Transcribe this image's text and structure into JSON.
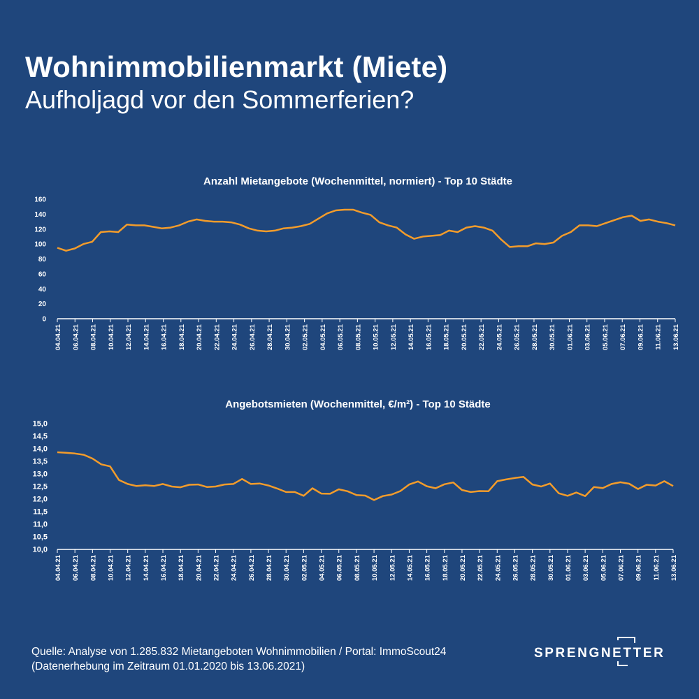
{
  "header": {
    "title": "Wohnimmobilienmarkt (Miete)",
    "subtitle": "Aufholjagd vor den Sommerferien?"
  },
  "footer": {
    "source_line1": "Quelle: Analyse von 1.285.832 Mietangeboten Wohnimmobilien / Portal: ImmoScout24",
    "source_line2": "(Datenerhebung im Zeitraum 01.01.2020 bis  13.06.2021)",
    "logo": "SPRENGNETTER"
  },
  "colors": {
    "background": "#1f467c",
    "line": "#f39c2b",
    "text": "#ffffff"
  },
  "chart_data": [
    {
      "type": "line",
      "title": "Anzahl Mietangebote (Wochenmittel, normiert) - Top 10 Städte",
      "ylim": [
        0,
        160
      ],
      "yticks": [
        "0",
        "20",
        "40",
        "60",
        "80",
        "100",
        "120",
        "140",
        "160"
      ],
      "grid": false,
      "x_tick_labels": [
        "04.04.21",
        "06.04.21",
        "08.04.21",
        "10.04.21",
        "12.04.21",
        "14.04.21",
        "16.04.21",
        "18.04.21",
        "20.04.21",
        "22.04.21",
        "24.04.21",
        "26.04.21",
        "28.04.21",
        "30.04.21",
        "02.05.21",
        "04.05.21",
        "06.05.21",
        "08.05.21",
        "10.05.21",
        "12.05.21",
        "14.05.21",
        "16.05.21",
        "18.05.21",
        "20.05.21",
        "22.05.21",
        "24.05.21",
        "26.05.21",
        "28.05.21",
        "30.05.21",
        "01.06.21",
        "03.06.21",
        "05.06.21",
        "07.06.21",
        "09.06.21",
        "11.06.21",
        "13.06.21"
      ],
      "values": [
        95,
        91,
        94,
        100,
        103,
        116,
        117,
        116,
        126,
        125,
        125,
        123,
        121,
        122,
        125,
        130,
        133,
        131,
        130,
        130,
        129,
        126,
        121,
        118,
        117,
        118,
        121,
        122,
        124,
        127,
        134,
        141,
        145,
        146,
        146,
        142,
        139,
        129,
        125,
        122,
        113,
        107,
        110,
        111,
        112,
        118,
        116,
        122,
        124,
        122,
        118,
        106,
        96,
        97,
        97,
        101,
        100,
        102,
        111,
        116,
        125,
        125,
        124,
        128,
        132,
        136,
        138,
        131,
        133,
        130,
        128,
        125
      ]
    },
    {
      "type": "line",
      "title": "Angebotsmieten (Wochenmittel, €/m²) - Top 10 Städte",
      "ylim": [
        10,
        15
      ],
      "yticks": [
        "10,0",
        "10,5",
        "11,0",
        "11,5",
        "12,0",
        "12,5",
        "13,0",
        "13,5",
        "14,0",
        "14,5",
        "15,0"
      ],
      "grid": false,
      "x_tick_labels": [
        "04.04.21",
        "06.04.21",
        "08.04.21",
        "10.04.21",
        "12.04.21",
        "14.04.21",
        "16.04.21",
        "18.04.21",
        "20.04.21",
        "22.04.21",
        "24.04.21",
        "26.04.21",
        "28.04.21",
        "30.04.21",
        "02.05.21",
        "04.05.21",
        "06.05.21",
        "08.05.21",
        "10.05.21",
        "12.05.21",
        "14.05.21",
        "16.05.21",
        "18.05.21",
        "20.05.21",
        "22.05.21",
        "24.05.21",
        "26.05.21",
        "28.05.21",
        "30.05.21",
        "01.06.21",
        "03.06.21",
        "05.06.21",
        "07.06.21",
        "09.06.21",
        "11.06.21",
        "13.06.21"
      ],
      "values": [
        13.86,
        13.84,
        13.81,
        13.76,
        13.61,
        13.38,
        13.3,
        12.76,
        12.6,
        12.52,
        12.55,
        12.52,
        12.6,
        12.5,
        12.47,
        12.57,
        12.58,
        12.48,
        12.5,
        12.58,
        12.6,
        12.8,
        12.6,
        12.62,
        12.54,
        12.42,
        12.28,
        12.28,
        12.13,
        12.43,
        12.22,
        12.21,
        12.39,
        12.31,
        12.16,
        12.14,
        11.96,
        12.12,
        12.18,
        12.32,
        12.58,
        12.7,
        12.51,
        12.43,
        12.59,
        12.66,
        12.36,
        12.28,
        12.32,
        12.31,
        12.71,
        12.78,
        12.84,
        12.88,
        12.58,
        12.5,
        12.62,
        12.23,
        12.13,
        12.26,
        12.12,
        12.48,
        12.44,
        12.6,
        12.67,
        12.61,
        12.4,
        12.57,
        12.54,
        12.71,
        12.52
      ]
    }
  ]
}
